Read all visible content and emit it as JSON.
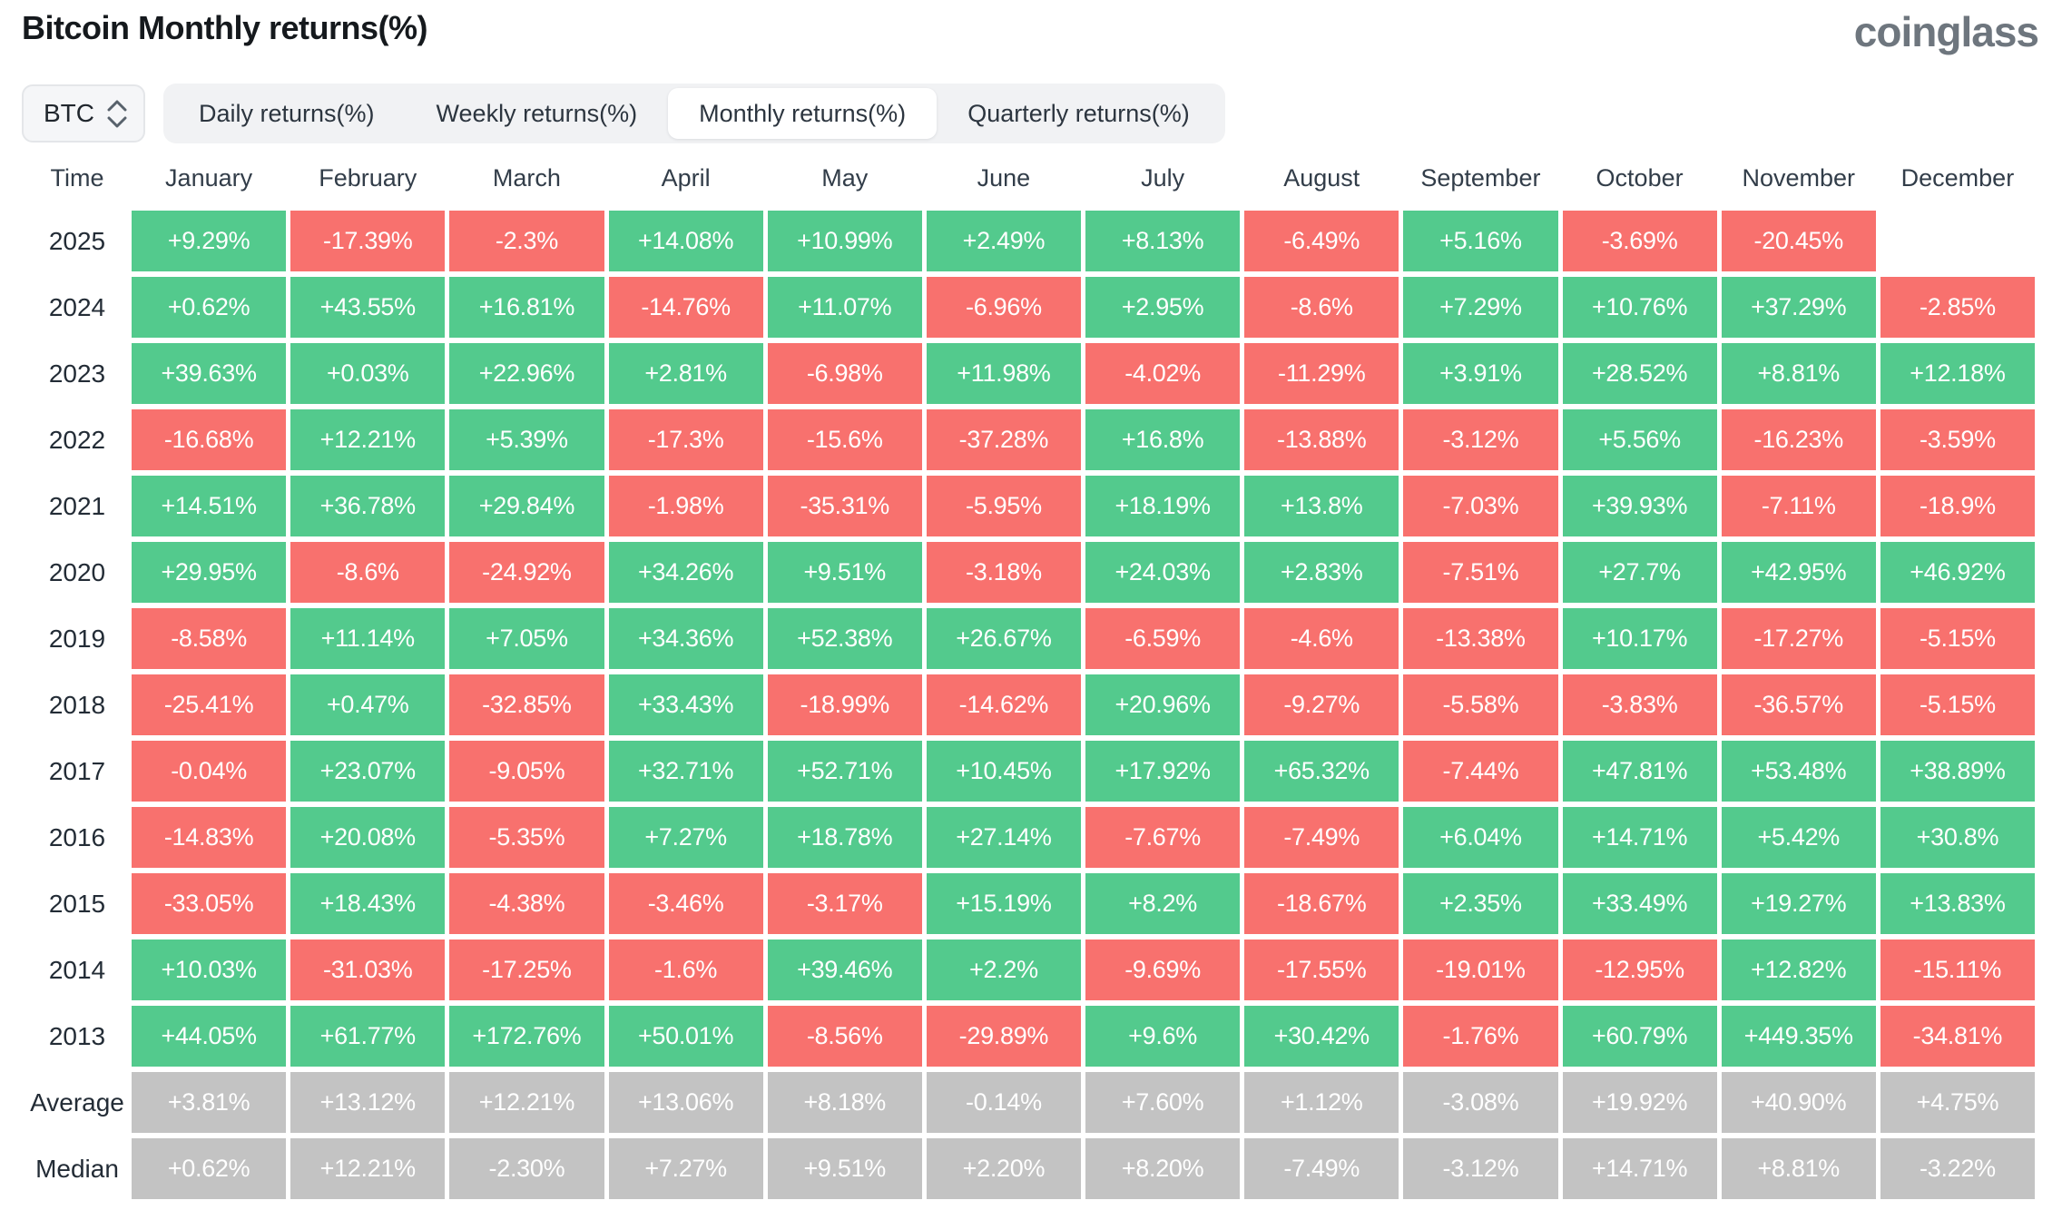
{
  "header": {
    "title": "Bitcoin Monthly returns(%)",
    "logo": "coinglass"
  },
  "controls": {
    "coin": "BTC",
    "tabs": [
      "Daily returns(%)",
      "Weekly returns(%)",
      "Monthly returns(%)",
      "Quarterly returns(%)"
    ],
    "active_tab": "Monthly returns(%)"
  },
  "colors": {
    "positive": "#53ca8d",
    "negative": "#f8716e",
    "summary": "#c3c3c3"
  },
  "table": {
    "columns": [
      "Time",
      "January",
      "February",
      "March",
      "April",
      "May",
      "June",
      "July",
      "August",
      "September",
      "October",
      "November",
      "December"
    ],
    "rows": [
      {
        "label": "2025",
        "summary": false,
        "values": [
          "+9.29%",
          "-17.39%",
          "-2.3%",
          "+14.08%",
          "+10.99%",
          "+2.49%",
          "+8.13%",
          "-6.49%",
          "+5.16%",
          "-3.69%",
          "-20.45%",
          ""
        ]
      },
      {
        "label": "2024",
        "summary": false,
        "values": [
          "+0.62%",
          "+43.55%",
          "+16.81%",
          "-14.76%",
          "+11.07%",
          "-6.96%",
          "+2.95%",
          "-8.6%",
          "+7.29%",
          "+10.76%",
          "+37.29%",
          "-2.85%"
        ]
      },
      {
        "label": "2023",
        "summary": false,
        "values": [
          "+39.63%",
          "+0.03%",
          "+22.96%",
          "+2.81%",
          "-6.98%",
          "+11.98%",
          "-4.02%",
          "-11.29%",
          "+3.91%",
          "+28.52%",
          "+8.81%",
          "+12.18%"
        ]
      },
      {
        "label": "2022",
        "summary": false,
        "values": [
          "-16.68%",
          "+12.21%",
          "+5.39%",
          "-17.3%",
          "-15.6%",
          "-37.28%",
          "+16.8%",
          "-13.88%",
          "-3.12%",
          "+5.56%",
          "-16.23%",
          "-3.59%"
        ]
      },
      {
        "label": "2021",
        "summary": false,
        "values": [
          "+14.51%",
          "+36.78%",
          "+29.84%",
          "-1.98%",
          "-35.31%",
          "-5.95%",
          "+18.19%",
          "+13.8%",
          "-7.03%",
          "+39.93%",
          "-7.11%",
          "-18.9%"
        ]
      },
      {
        "label": "2020",
        "summary": false,
        "values": [
          "+29.95%",
          "-8.6%",
          "-24.92%",
          "+34.26%",
          "+9.51%",
          "-3.18%",
          "+24.03%",
          "+2.83%",
          "-7.51%",
          "+27.7%",
          "+42.95%",
          "+46.92%"
        ]
      },
      {
        "label": "2019",
        "summary": false,
        "values": [
          "-8.58%",
          "+11.14%",
          "+7.05%",
          "+34.36%",
          "+52.38%",
          "+26.67%",
          "-6.59%",
          "-4.6%",
          "-13.38%",
          "+10.17%",
          "-17.27%",
          "-5.15%"
        ]
      },
      {
        "label": "2018",
        "summary": false,
        "values": [
          "-25.41%",
          "+0.47%",
          "-32.85%",
          "+33.43%",
          "-18.99%",
          "-14.62%",
          "+20.96%",
          "-9.27%",
          "-5.58%",
          "-3.83%",
          "-36.57%",
          "-5.15%"
        ]
      },
      {
        "label": "2017",
        "summary": false,
        "values": [
          "-0.04%",
          "+23.07%",
          "-9.05%",
          "+32.71%",
          "+52.71%",
          "+10.45%",
          "+17.92%",
          "+65.32%",
          "-7.44%",
          "+47.81%",
          "+53.48%",
          "+38.89%"
        ]
      },
      {
        "label": "2016",
        "summary": false,
        "values": [
          "-14.83%",
          "+20.08%",
          "-5.35%",
          "+7.27%",
          "+18.78%",
          "+27.14%",
          "-7.67%",
          "-7.49%",
          "+6.04%",
          "+14.71%",
          "+5.42%",
          "+30.8%"
        ]
      },
      {
        "label": "2015",
        "summary": false,
        "values": [
          "-33.05%",
          "+18.43%",
          "-4.38%",
          "-3.46%",
          "-3.17%",
          "+15.19%",
          "+8.2%",
          "-18.67%",
          "+2.35%",
          "+33.49%",
          "+19.27%",
          "+13.83%"
        ]
      },
      {
        "label": "2014",
        "summary": false,
        "values": [
          "+10.03%",
          "-31.03%",
          "-17.25%",
          "-1.6%",
          "+39.46%",
          "+2.2%",
          "-9.69%",
          "-17.55%",
          "-19.01%",
          "-12.95%",
          "+12.82%",
          "-15.11%"
        ]
      },
      {
        "label": "2013",
        "summary": false,
        "values": [
          "+44.05%",
          "+61.77%",
          "+172.76%",
          "+50.01%",
          "-8.56%",
          "-29.89%",
          "+9.6%",
          "+30.42%",
          "-1.76%",
          "+60.79%",
          "+449.35%",
          "-34.81%"
        ]
      },
      {
        "label": "Average",
        "summary": true,
        "values": [
          "+3.81%",
          "+13.12%",
          "+12.21%",
          "+13.06%",
          "+8.18%",
          "-0.14%",
          "+7.60%",
          "+1.12%",
          "-3.08%",
          "+19.92%",
          "+40.90%",
          "+4.75%"
        ]
      },
      {
        "label": "Median",
        "summary": true,
        "values": [
          "+0.62%",
          "+12.21%",
          "-2.30%",
          "+7.27%",
          "+9.51%",
          "+2.20%",
          "+8.20%",
          "-7.49%",
          "-3.12%",
          "+14.71%",
          "+8.81%",
          "-3.22%"
        ]
      }
    ]
  }
}
